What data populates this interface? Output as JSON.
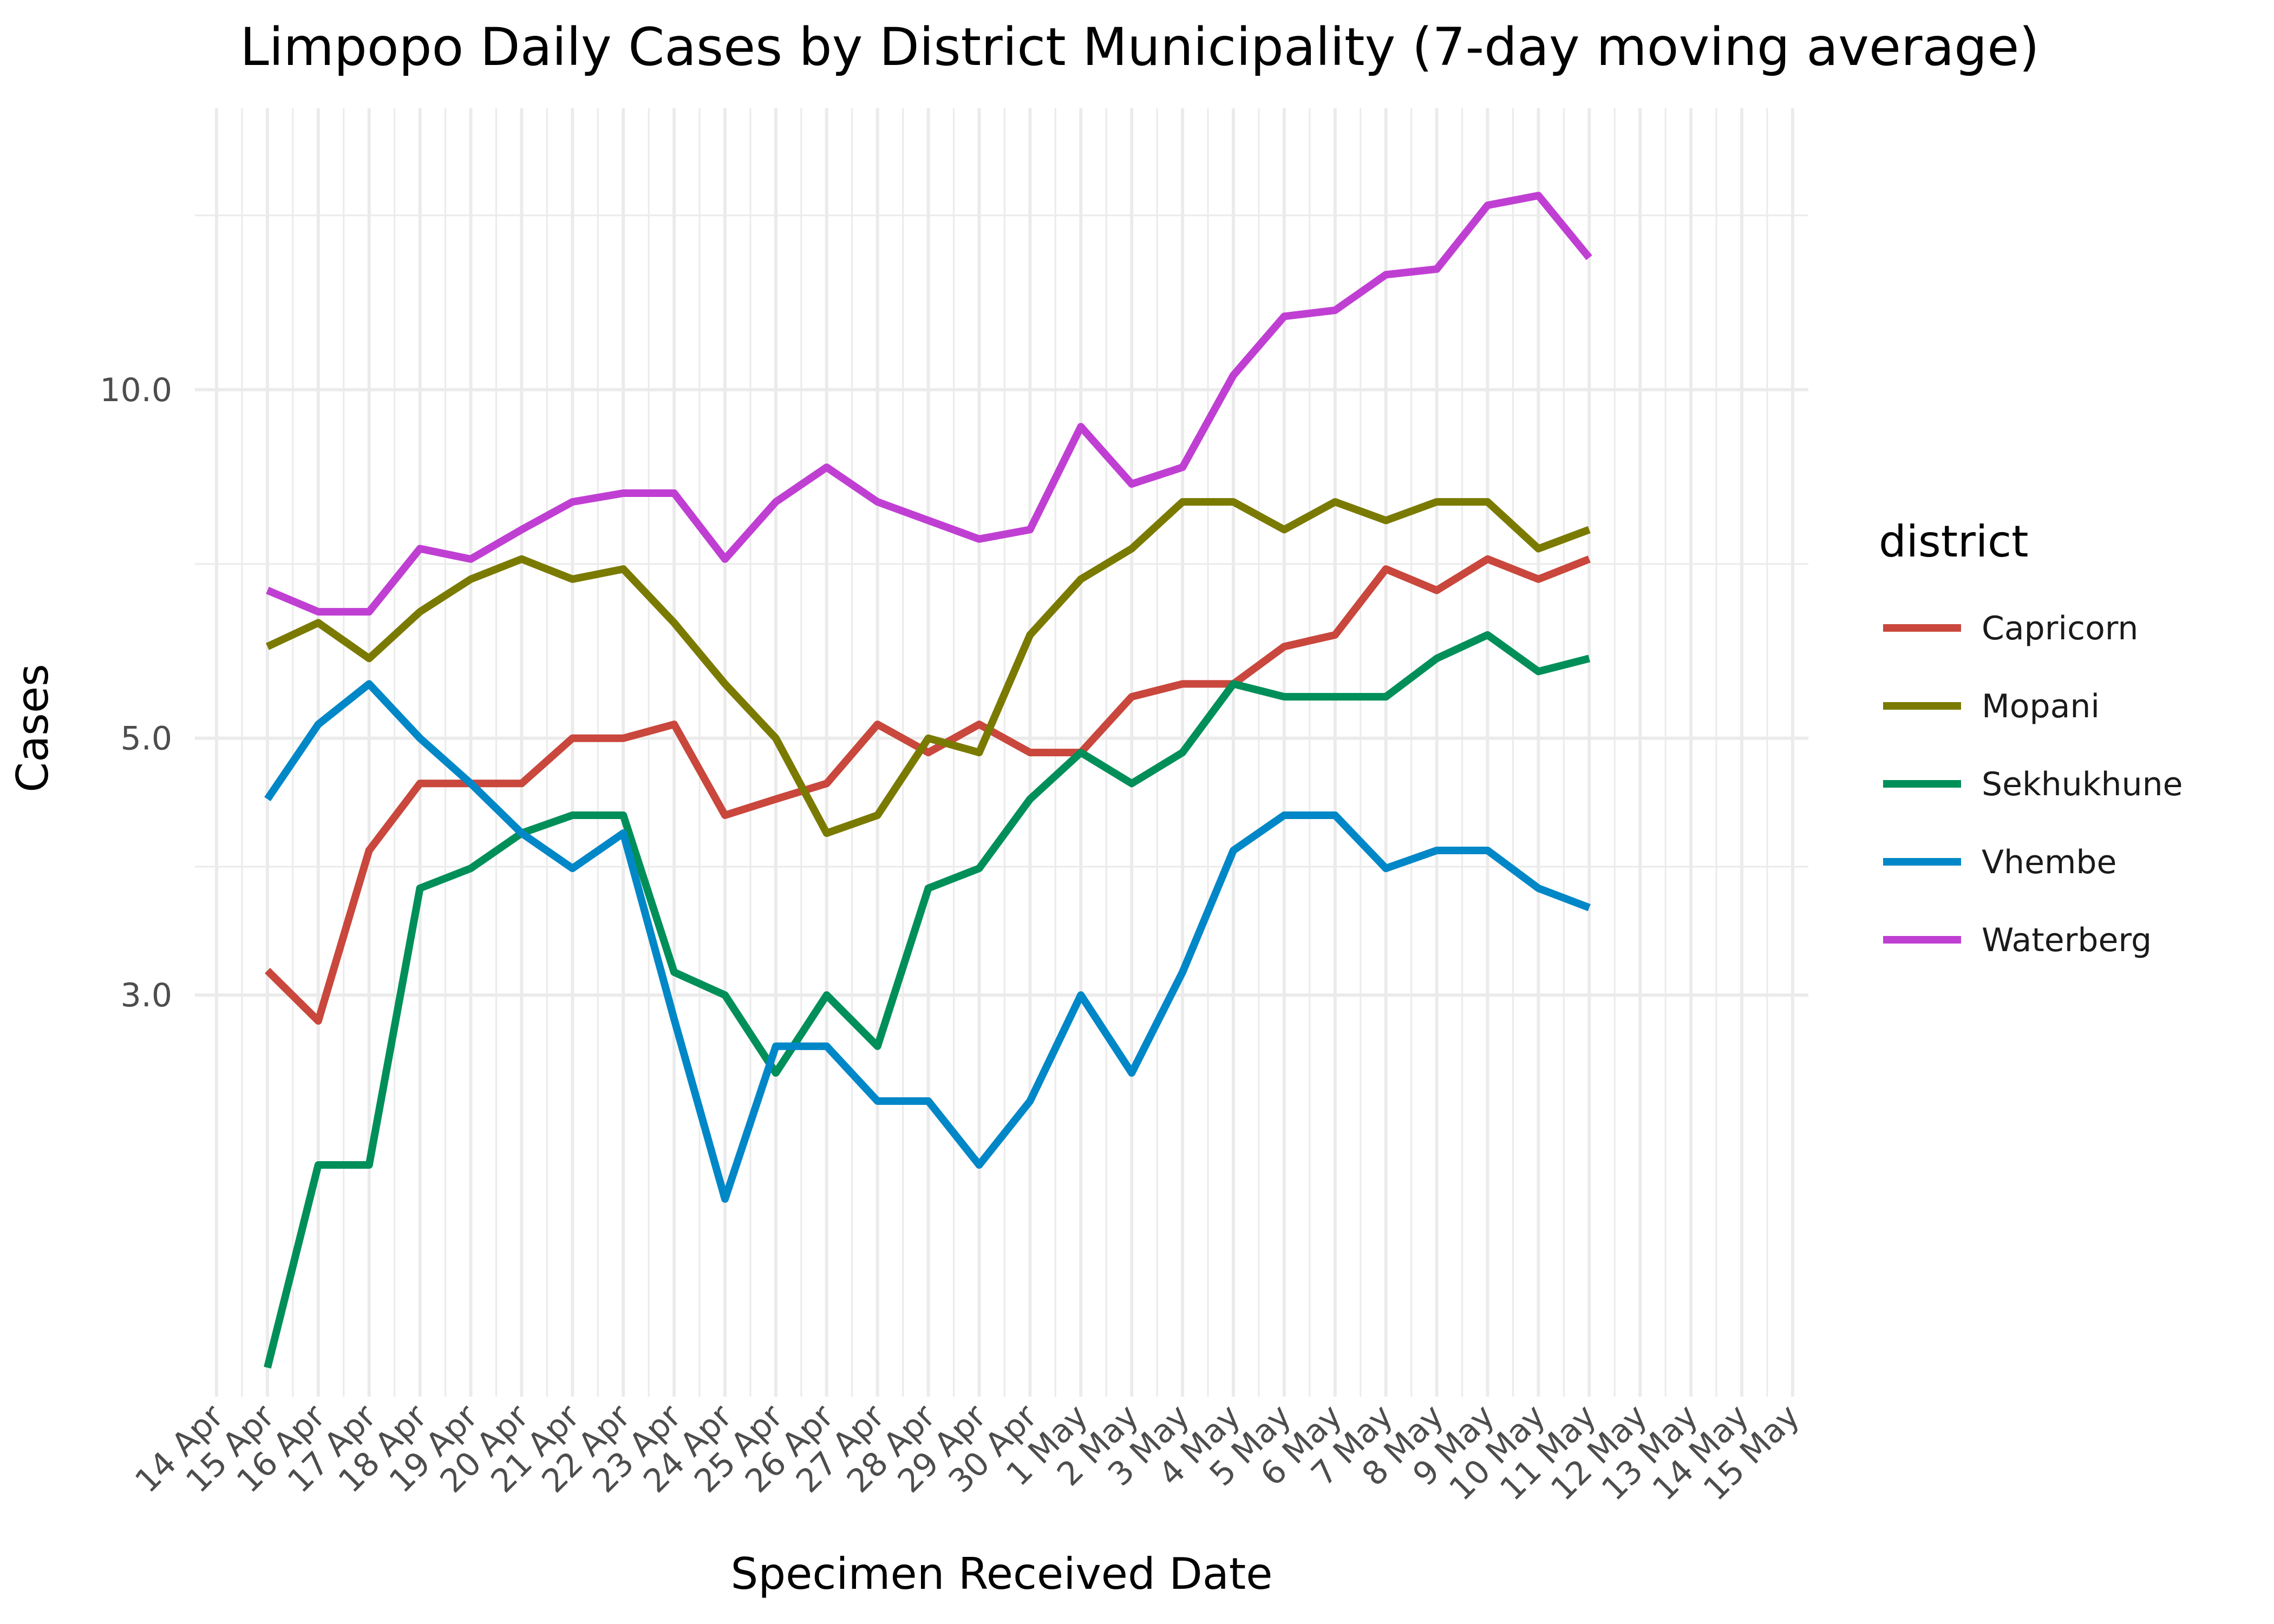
{
  "chart_data": {
    "type": "line",
    "title": "Limpopo Daily Cases by District Municipality (7-day moving average)",
    "xlabel": "Specimen Received Date",
    "ylabel": "Cases",
    "y_scale": "log",
    "ylim": [
      1.35,
      17.5
    ],
    "y_major_ticks": [
      3,
      5,
      10
    ],
    "y_tick_labels": [
      "3.0",
      "5.0",
      "10.0"
    ],
    "x_tick_labels": [
      "14 Apr",
      "15 Apr",
      "16 Apr",
      "17 Apr",
      "18 Apr",
      "19 Apr",
      "20 Apr",
      "21 Apr",
      "22 Apr",
      "23 Apr",
      "24 Apr",
      "25 Apr",
      "26 Apr",
      "27 Apr",
      "28 Apr",
      "29 Apr",
      "30 Apr",
      "1 May",
      "2 May",
      "3 May",
      "4 May",
      "5 May",
      "6 May",
      "7 May",
      "8 May",
      "9 May",
      "10 May",
      "11 May",
      "12 May",
      "13 May",
      "14 May",
      "15 May"
    ],
    "x": [
      "15 Apr",
      "16 Apr",
      "17 Apr",
      "18 Apr",
      "19 Apr",
      "20 Apr",
      "21 Apr",
      "22 Apr",
      "23 Apr",
      "24 Apr",
      "25 Apr",
      "26 Apr",
      "27 Apr",
      "28 Apr",
      "29 Apr",
      "30 Apr",
      "1 May",
      "2 May",
      "3 May",
      "4 May",
      "5 May",
      "6 May",
      "7 May",
      "8 May",
      "9 May",
      "10 May",
      "11 May",
      "12 May"
    ],
    "legend_title": "district",
    "legend_position": "right",
    "grid": true,
    "series": [
      {
        "name": "Capricorn",
        "color": "#c9473c",
        "values": [
          3.15,
          2.85,
          4.0,
          4.57,
          4.57,
          4.57,
          5.0,
          5.0,
          5.14,
          4.29,
          4.43,
          4.57,
          5.14,
          4.86,
          5.14,
          4.86,
          4.86,
          5.43,
          5.57,
          5.57,
          6.0,
          6.14,
          7.0,
          6.71,
          7.14,
          6.86,
          7.14,
          null
        ]
      },
      {
        "name": "Mopani",
        "color": "#7a7a00",
        "values": [
          6.0,
          6.29,
          5.86,
          6.43,
          6.86,
          7.14,
          6.86,
          7.0,
          6.29,
          5.57,
          5.0,
          4.14,
          4.29,
          5.0,
          4.86,
          6.14,
          6.86,
          7.29,
          8.0,
          8.0,
          7.57,
          8.0,
          7.71,
          8.0,
          8.0,
          7.29,
          7.57,
          null
        ]
      },
      {
        "name": "Sekhukhune",
        "color": "#008f59",
        "values": [
          1.43,
          2.14,
          2.14,
          3.71,
          3.86,
          4.14,
          4.29,
          4.29,
          3.14,
          3.0,
          2.57,
          3.0,
          2.71,
          3.71,
          3.86,
          4.43,
          4.86,
          4.57,
          4.86,
          5.57,
          5.43,
          5.43,
          5.43,
          5.86,
          6.14,
          5.71,
          5.86,
          null
        ]
      },
      {
        "name": "Vhembe",
        "color": "#0087c7",
        "values": [
          4.43,
          5.14,
          5.57,
          5.0,
          4.57,
          4.14,
          3.86,
          4.14,
          2.86,
          2.0,
          2.71,
          2.71,
          2.43,
          2.43,
          2.14,
          2.43,
          3.0,
          2.57,
          3.14,
          4.0,
          4.29,
          4.29,
          3.86,
          4.0,
          4.0,
          3.71,
          3.57,
          null
        ]
      },
      {
        "name": "Waterberg",
        "color": "#c03fd3",
        "values": [
          6.71,
          6.43,
          6.43,
          7.29,
          7.14,
          7.57,
          8.0,
          8.14,
          8.14,
          7.14,
          8.0,
          8.57,
          8.0,
          7.71,
          7.43,
          7.57,
          9.29,
          8.29,
          8.57,
          10.29,
          11.57,
          11.71,
          12.57,
          12.71,
          14.43,
          14.71,
          13.0,
          null
        ]
      }
    ]
  }
}
